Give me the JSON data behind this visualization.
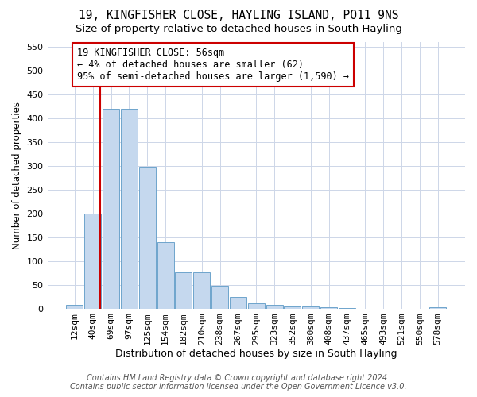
{
  "title": "19, KINGFISHER CLOSE, HAYLING ISLAND, PO11 9NS",
  "subtitle": "Size of property relative to detached houses in South Hayling",
  "xlabel": "Distribution of detached houses by size in South Hayling",
  "ylabel": "Number of detached properties",
  "footer_line1": "Contains HM Land Registry data © Crown copyright and database right 2024.",
  "footer_line2": "Contains public sector information licensed under the Open Government Licence v3.0.",
  "categories": [
    "12sqm",
    "40sqm",
    "69sqm",
    "97sqm",
    "125sqm",
    "154sqm",
    "182sqm",
    "210sqm",
    "238sqm",
    "267sqm",
    "295sqm",
    "323sqm",
    "352sqm",
    "380sqm",
    "408sqm",
    "437sqm",
    "465sqm",
    "493sqm",
    "521sqm",
    "550sqm",
    "578sqm"
  ],
  "values": [
    7,
    200,
    420,
    420,
    298,
    140,
    76,
    76,
    48,
    24,
    11,
    7,
    5,
    4,
    3,
    1,
    0,
    0,
    0,
    0,
    3
  ],
  "bar_color": "#c5d8ee",
  "bar_edge_color": "#6ea4cc",
  "vline_x": 1.42,
  "vline_color": "#cc0000",
  "annotation_text": "19 KINGFISHER CLOSE: 56sqm\n← 4% of detached houses are smaller (62)\n95% of semi-detached houses are larger (1,590) →",
  "annotation_box_color": "#ffffff",
  "annotation_box_edge_color": "#cc0000",
  "ylim": [
    0,
    560
  ],
  "yticks": [
    0,
    50,
    100,
    150,
    200,
    250,
    300,
    350,
    400,
    450,
    500,
    550
  ],
  "title_fontsize": 10.5,
  "subtitle_fontsize": 9.5,
  "xlabel_fontsize": 9,
  "ylabel_fontsize": 8.5,
  "tick_fontsize": 8,
  "annotation_fontsize": 8.5,
  "footer_fontsize": 7,
  "background_color": "#ffffff",
  "grid_color": "#cdd6e8"
}
